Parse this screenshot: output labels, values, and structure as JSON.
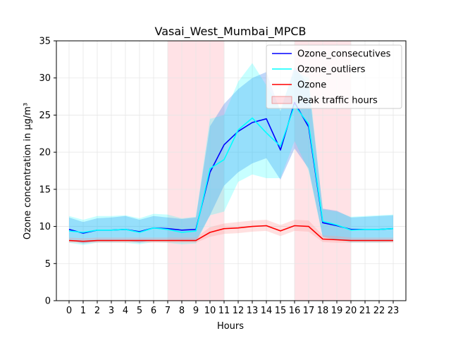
{
  "chart_data": {
    "type": "line",
    "title": "Vasai_West_Mumbai_MPCB",
    "xlabel": "Hours",
    "ylabel": "Ozone concentration in µg/m³",
    "x": [
      0,
      1,
      2,
      3,
      4,
      5,
      6,
      7,
      8,
      9,
      10,
      11,
      12,
      13,
      14,
      15,
      16,
      17,
      18,
      19,
      20,
      21,
      22,
      23
    ],
    "xlim": [
      -0.9,
      23.9
    ],
    "ylim": [
      0,
      35
    ],
    "yticks": [
      0,
      5,
      10,
      15,
      20,
      25,
      30,
      35
    ],
    "grid": true,
    "legend_position": "top-right",
    "shaded_regions": [
      {
        "from": 7,
        "to": 11,
        "label": "Peak traffic hours",
        "color": "#ffb6c1"
      },
      {
        "from": 16,
        "to": 20,
        "label": "Peak traffic hours",
        "color": "#ffb6c1"
      }
    ],
    "series": [
      {
        "name": "Ozone_consecutives",
        "color": "#0000ff",
        "band_color": "#4a8cf0",
        "values": [
          9.6,
          9.1,
          9.5,
          9.5,
          9.6,
          9.3,
          9.8,
          9.7,
          9.5,
          9.6,
          17.3,
          21.0,
          22.8,
          24.0,
          24.5,
          20.3,
          26.7,
          23.4,
          10.5,
          10.1,
          9.6,
          9.6,
          9.6,
          9.7
        ],
        "upper": [
          11.2,
          10.6,
          11.1,
          11.2,
          11.4,
          10.9,
          11.4,
          11.2,
          11.0,
          11.2,
          23.5,
          26.5,
          28.5,
          30.0,
          30.8,
          25.5,
          31.5,
          29.0,
          12.4,
          12.1,
          11.2,
          11.3,
          11.4,
          11.5
        ],
        "lower": [
          8.2,
          7.7,
          8.0,
          8.0,
          8.1,
          7.8,
          8.2,
          8.2,
          8.0,
          8.0,
          11.5,
          15.5,
          17.3,
          18.5,
          19.2,
          16.3,
          20.5,
          17.8,
          8.6,
          8.2,
          8.0,
          8.0,
          8.0,
          8.0
        ]
      },
      {
        "name": "Ozone_outliers",
        "color": "#00ffff",
        "band_color": "#00ffff",
        "values": [
          9.4,
          9.2,
          9.5,
          9.5,
          9.6,
          9.2,
          9.8,
          9.6,
          9.2,
          9.4,
          17.8,
          19.0,
          23.0,
          24.6,
          22.6,
          20.8,
          26.3,
          23.8,
          10.7,
          10.2,
          9.5,
          9.6,
          9.6,
          9.7
        ],
        "upper": [
          11.4,
          10.9,
          11.4,
          11.4,
          11.5,
          11.1,
          11.7,
          11.6,
          11.1,
          11.3,
          24.5,
          25.0,
          29.5,
          32.0,
          29.0,
          26.0,
          31.0,
          30.0,
          12.3,
          12.0,
          11.3,
          11.4,
          11.5,
          11.6
        ],
        "lower": [
          7.8,
          7.5,
          7.8,
          7.8,
          7.8,
          7.6,
          7.9,
          7.8,
          7.6,
          7.7,
          11.5,
          12.0,
          16.0,
          17.0,
          16.5,
          16.5,
          21.5,
          17.5,
          8.5,
          8.2,
          7.8,
          7.8,
          7.8,
          7.9
        ]
      },
      {
        "name": "Ozone",
        "color": "#ff0000",
        "band_color": "#ff9999",
        "values": [
          8.1,
          8.0,
          8.1,
          8.1,
          8.1,
          8.1,
          8.1,
          8.1,
          8.1,
          8.1,
          9.2,
          9.7,
          9.8,
          10.0,
          10.1,
          9.4,
          10.1,
          10.0,
          8.3,
          8.2,
          8.1,
          8.1,
          8.1,
          8.1
        ],
        "upper": [
          8.5,
          8.4,
          8.5,
          8.5,
          8.5,
          8.5,
          8.5,
          8.5,
          8.5,
          8.5,
          9.9,
          10.4,
          10.6,
          10.8,
          10.9,
          10.2,
          10.9,
          10.8,
          8.8,
          8.7,
          8.5,
          8.5,
          8.5,
          8.5
        ],
        "lower": [
          7.8,
          7.7,
          7.8,
          7.8,
          7.8,
          7.8,
          7.8,
          7.8,
          7.8,
          7.8,
          8.6,
          9.0,
          9.1,
          9.3,
          9.4,
          8.7,
          9.4,
          9.3,
          7.9,
          7.8,
          7.8,
          7.8,
          7.8,
          7.8
        ]
      }
    ],
    "legend": [
      {
        "label": "Ozone_consecutives",
        "kind": "line",
        "color": "#0000ff"
      },
      {
        "label": "Ozone_outliers",
        "kind": "line",
        "color": "#00ffff"
      },
      {
        "label": "Ozone",
        "kind": "line",
        "color": "#ff0000"
      },
      {
        "label": "Peak traffic hours",
        "kind": "patch",
        "color": "#ffb6c1"
      }
    ]
  }
}
